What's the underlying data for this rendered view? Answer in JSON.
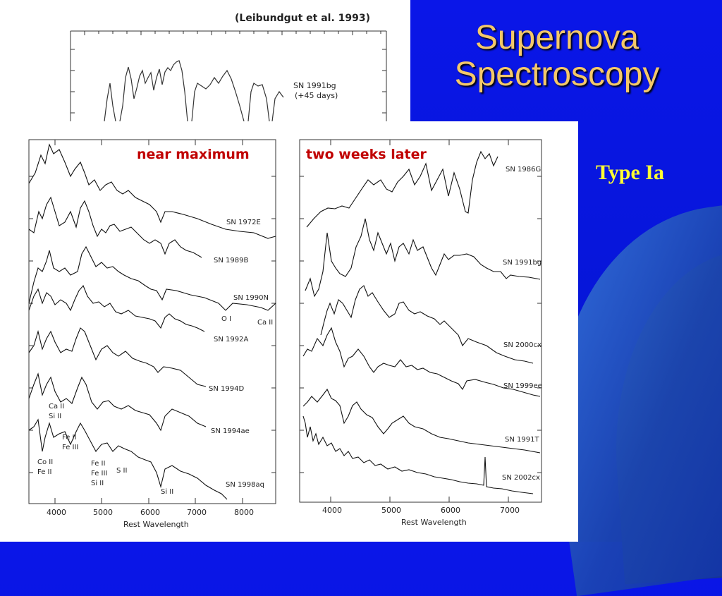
{
  "slide": {
    "title_line1": "Supernova",
    "title_line2": "Spectroscopy",
    "subtitle": "Type Ia"
  },
  "top_figure": {
    "citation": "(Leibundgut et al. 1993)",
    "label_line1": "SN 1991bg",
    "label_line2": "(+45 days)"
  },
  "left_panel": {
    "heading": "near maximum",
    "xlabel": "Rest Wavelength",
    "ticks": [
      "4000",
      "5000",
      "6000",
      "7000",
      "8000"
    ],
    "spectra": [
      "SN 1972E",
      "SN 1989B",
      "SN 1990N",
      "SN 1992A",
      "SN 1994D",
      "SN 1994ae",
      "SN 1998aq"
    ],
    "lines": {
      "oi": "O I",
      "caii_right": "Ca II",
      "caii_sii_1": "Ca II",
      "caii_sii_2": "Si II",
      "fe_1": "Fe II",
      "fe_2": "Fe III",
      "co_1": "Co II",
      "co_2": "Fe II",
      "fe3_1": "Fe II",
      "fe3_2": "Fe III",
      "fe3_3": "Si II",
      "sii_mid": "S II",
      "sii_bottom": "Si II"
    }
  },
  "right_panel": {
    "heading": "two weeks later",
    "xlabel": "Rest Wavelength",
    "ticks": [
      "4000",
      "5000",
      "6000",
      "7000"
    ],
    "spectra": [
      "SN 1986G",
      "SN 1991bg",
      "SN 2000cx",
      "SN 1999ee",
      "SN 1991T",
      "SN 2002cx"
    ]
  },
  "colors": {
    "background": "#0a16e8",
    "title": "#f4c86a",
    "subtitle": "#ffff33",
    "heading": "#c00000"
  }
}
